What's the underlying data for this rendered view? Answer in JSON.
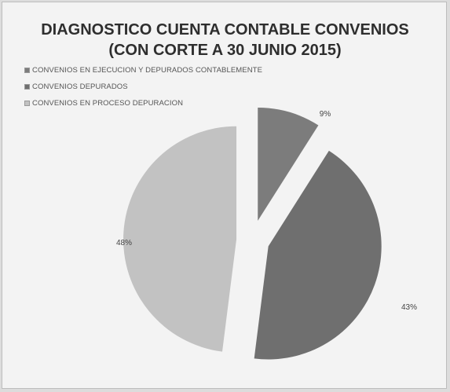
{
  "chart_data": {
    "type": "pie",
    "title": [
      "DIAGNOSTICO CUENTA CONTABLE CONVENIOS",
      "(CON CORTE A 30 JUNIO 2015)"
    ],
    "slices": [
      {
        "name": "CONVENIOS EN EJECUCION Y DEPURADOS CONTABLEMENTE",
        "value": 9,
        "label": "9%",
        "color": "#7c7c7c"
      },
      {
        "name": "CONVENIOS DEPURADOS",
        "value": 43,
        "label": "43%",
        "color": "#6f6f6f"
      },
      {
        "name": "CONVENIOS EN PROCESO DEPURACION",
        "value": 48,
        "label": "48%",
        "color": "#c2c2c2"
      }
    ],
    "legend_position": "top-left",
    "exploded": true
  }
}
